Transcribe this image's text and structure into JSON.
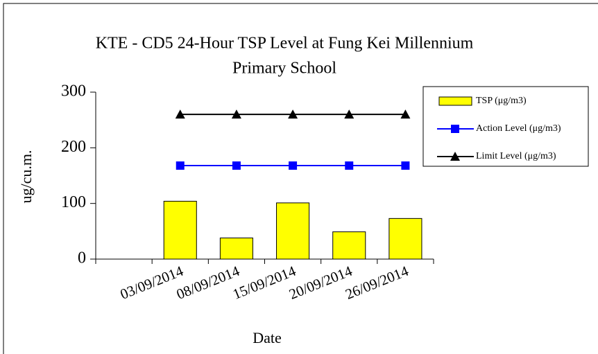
{
  "chart_data": {
    "type": "bar_line",
    "title": [
      "KTE - CD5 24-Hour TSP Level at Fung Kei Millennium",
      "Primary School"
    ],
    "x_label": "Date",
    "y_label": "ug/cu.m.",
    "categories": [
      null,
      "03/09/2014",
      "08/09/2014",
      "15/09/2014",
      "20/09/2014",
      "26/09/2014"
    ],
    "series": [
      {
        "name": "TSP (μg/m3)",
        "type": "bar",
        "color": "#ffff00",
        "values": [
          null,
          104,
          38,
          101,
          49,
          73
        ]
      },
      {
        "name": "Action Level (μg/m3)",
        "type": "line",
        "marker": "square",
        "color": "#0000ff",
        "values": [
          null,
          168,
          168,
          168,
          168,
          168
        ]
      },
      {
        "name": "Limit Level (μg/m3)",
        "type": "line",
        "marker": "triangle",
        "color": "#000000",
        "values": [
          null,
          260,
          260,
          260,
          260,
          260
        ]
      }
    ],
    "ylim": [
      0,
      300
    ],
    "yticks": [
      0,
      100,
      200,
      300
    ],
    "grid": false,
    "legend": "right"
  }
}
